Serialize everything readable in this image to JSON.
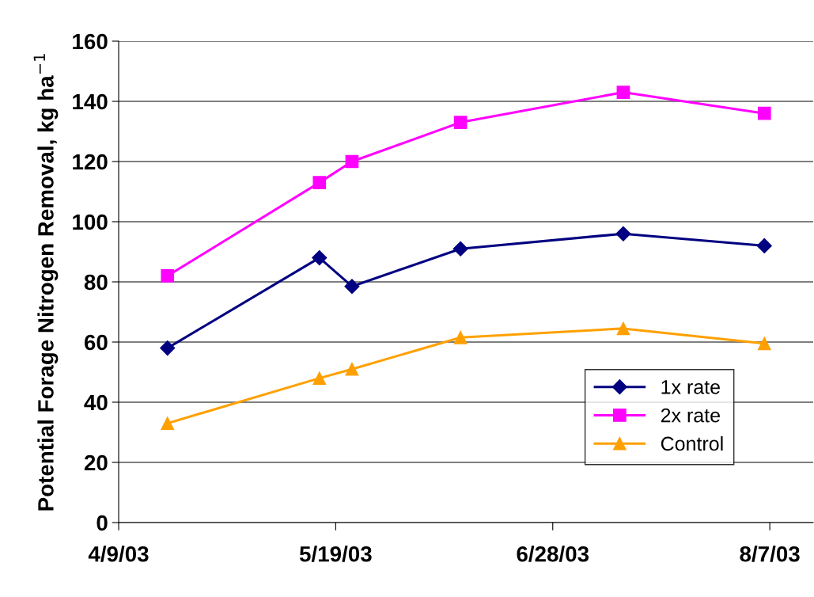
{
  "chart_data": {
    "type": "line",
    "ylabel": "Potential Forage Nitrogen Removal, kg ha$^{−1}$",
    "x": [
      "2003-04-18",
      "2003-05-16",
      "2003-05-22",
      "2003-06-11",
      "2003-07-11",
      "2003-08-06"
    ],
    "series": [
      {
        "name": "1x rate",
        "color": "#000080",
        "marker": "diamond",
        "values": [
          58,
          88,
          78.5,
          91,
          96,
          92
        ]
      },
      {
        "name": "2x rate",
        "color": "#ff00ff",
        "marker": "square",
        "values": [
          82,
          113,
          120,
          133,
          143,
          136
        ]
      },
      {
        "name": "Control",
        "color": "#ffa000",
        "marker": "triangle",
        "values": [
          33,
          48,
          51,
          61.5,
          64.5,
          59.5
        ]
      }
    ],
    "xlim": [
      "2003-04-09",
      "2003-08-15"
    ],
    "xticks": [
      {
        "value": "2003-04-09",
        "label": "4/9/03"
      },
      {
        "value": "2003-05-19",
        "label": "5/19/03"
      },
      {
        "value": "2003-06-28",
        "label": "6/28/03"
      },
      {
        "value": "2003-08-07",
        "label": "8/7/03"
      }
    ],
    "ylim": [
      0,
      160
    ],
    "yticks": [
      0,
      20,
      40,
      60,
      80,
      100,
      120,
      140,
      160
    ],
    "grid": "y",
    "legend": "bottom right",
    "line_style": "solid"
  }
}
